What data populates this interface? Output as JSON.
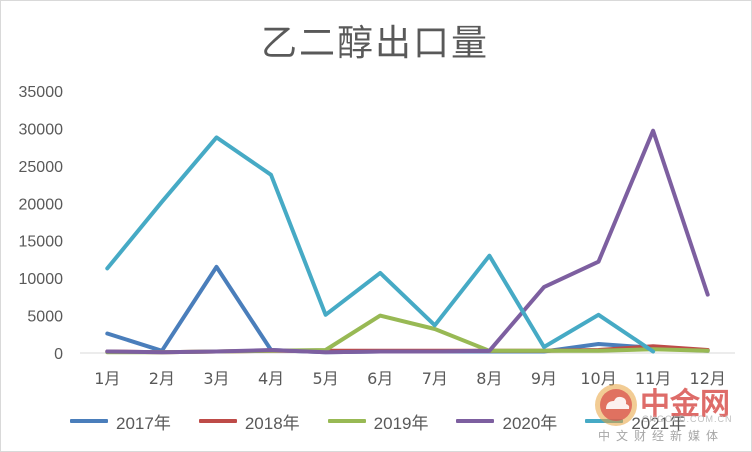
{
  "chart_data": {
    "type": "line",
    "title": "乙二醇出口量",
    "categories": [
      "1月",
      "2月",
      "3月",
      "4月",
      "5月",
      "6月",
      "7月",
      "8月",
      "9月",
      "10月",
      "11月",
      "12月"
    ],
    "ylim": [
      0,
      35000
    ],
    "yticks": [
      0,
      5000,
      10000,
      15000,
      20000,
      25000,
      30000,
      35000
    ],
    "grid": false,
    "legend_position": "bottom",
    "series": [
      {
        "name": "2017年",
        "color": "#4a7ebb",
        "values": [
          2600,
          300,
          11500,
          400,
          100,
          200,
          200,
          200,
          200,
          1200,
          700,
          300
        ]
      },
      {
        "name": "2018年",
        "color": "#be4b48",
        "values": [
          200,
          100,
          200,
          300,
          300,
          300,
          300,
          300,
          300,
          400,
          900,
          400
        ]
      },
      {
        "name": "2019年",
        "color": "#98b954",
        "values": [
          100,
          100,
          200,
          300,
          400,
          5000,
          3200,
          300,
          300,
          300,
          500,
          300
        ]
      },
      {
        "name": "2020年",
        "color": "#7d5fa0",
        "values": [
          200,
          100,
          200,
          400,
          100,
          200,
          200,
          300,
          8800,
          12200,
          29700,
          7800
        ]
      },
      {
        "name": "2021年",
        "color": "#46aac5",
        "values": [
          11300,
          20200,
          28800,
          23800,
          5100,
          10700,
          3700,
          13000,
          800,
          5100,
          200,
          null
        ]
      }
    ]
  },
  "watermark": {
    "name": "中金网",
    "domain": "CNGOLD.COM.CN",
    "tagline": "中文财经新媒体"
  }
}
